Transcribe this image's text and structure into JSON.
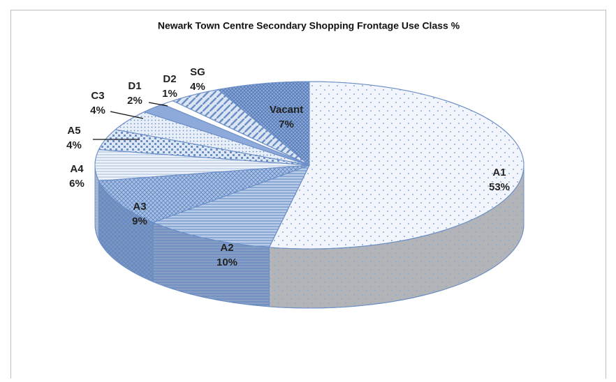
{
  "chart_data": {
    "type": "pie3d",
    "title": "Newark Town  Centre Secondary Shopping Frontage Use Class %",
    "categories": [
      "A1",
      "A2",
      "A3",
      "A4",
      "A5",
      "C3",
      "D1",
      "D2",
      "SG",
      "Vacant"
    ],
    "values": [
      53,
      10,
      9,
      6,
      4,
      4,
      2,
      1,
      4,
      7
    ],
    "value_labels": [
      "53%",
      "10%",
      "9%",
      "6%",
      "4%",
      "4%",
      "2%",
      "1%",
      "4%",
      "7%"
    ],
    "colors": [
      "#f2f6fc",
      "#b9cde8",
      "#a7bfe2",
      "#eef3fa",
      "#dfe8f5",
      "#e8eff8",
      "#8eaadb",
      "#ffffff",
      "#dbe5f3",
      "#8aa7d6"
    ]
  }
}
